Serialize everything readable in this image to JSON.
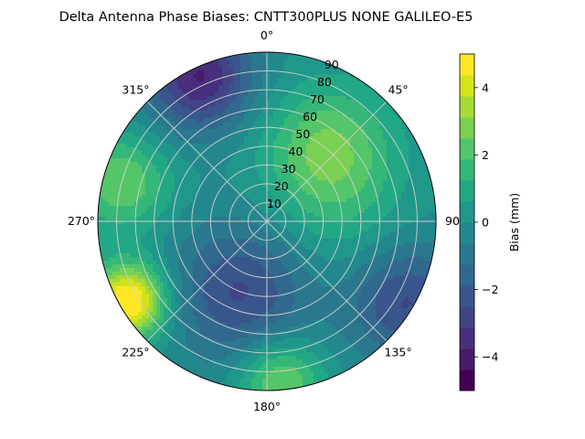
{
  "chart_data": {
    "type": "polar-contour",
    "title": "Delta Antenna Phase Biases: CNTT300PLUS     NONE GALILEO-E5",
    "theta_direction": "clockwise",
    "theta_zero": "top",
    "angle_ticks": [
      {
        "deg": 0,
        "label": "0°"
      },
      {
        "deg": 45,
        "label": "45°"
      },
      {
        "deg": 90,
        "label": "90"
      },
      {
        "deg": 135,
        "label": "135°"
      },
      {
        "deg": 180,
        "label": "180°"
      },
      {
        "deg": 225,
        "label": "225°"
      },
      {
        "deg": 270,
        "label": "270°"
      },
      {
        "deg": 315,
        "label": "315°"
      }
    ],
    "radial_ticks": [
      10,
      20,
      30,
      40,
      50,
      60,
      70,
      80,
      90
    ],
    "radial_range": [
      0,
      90
    ],
    "grid": true,
    "colorbar": {
      "label": "Bias (mm)",
      "ticks": [
        -4,
        -2,
        0,
        2,
        4
      ],
      "levels": [
        -5,
        -4.5,
        -4,
        -3.5,
        -3,
        -2.5,
        -2,
        -1.5,
        -1,
        -0.5,
        0,
        0.5,
        1,
        1.5,
        2,
        2.5,
        3,
        3.5,
        4,
        4.5,
        5
      ],
      "colormap": "viridis",
      "band_colors": [
        "#440154",
        "#481a6c",
        "#472f7d",
        "#414487",
        "#39568c",
        "#31688e",
        "#2a788e",
        "#23888e",
        "#1f988b",
        "#22a884",
        "#35b779",
        "#54c568",
        "#7ad151",
        "#a5db36",
        "#d2e21b",
        "#fde725"
      ]
    },
    "field_description": "bias values in mm as a function of azimuth (deg) and zenith angle (deg)",
    "field_components": [
      {
        "type": "blob",
        "az": 40,
        "zen": 50,
        "amp": 2.6,
        "sigma": 24
      },
      {
        "type": "blob",
        "az": 200,
        "zen": 40,
        "amp": -2.6,
        "sigma": 26
      },
      {
        "type": "blob",
        "az": 335,
        "zen": 85,
        "amp": -3.8,
        "sigma": 20
      },
      {
        "type": "blob",
        "az": 120,
        "zen": 85,
        "amp": -2.6,
        "sigma": 22
      },
      {
        "type": "blob",
        "az": 240,
        "zen": 85,
        "amp": 5.5,
        "sigma": 14
      },
      {
        "type": "blob",
        "az": 175,
        "zen": 85,
        "amp": 2.8,
        "sigma": 16
      },
      {
        "type": "blob",
        "az": 285,
        "zen": 80,
        "amp": 2.5,
        "sigma": 18
      },
      {
        "type": "blob",
        "az": 90,
        "zen": 40,
        "amp": 0.8,
        "sigma": 26
      }
    ]
  }
}
